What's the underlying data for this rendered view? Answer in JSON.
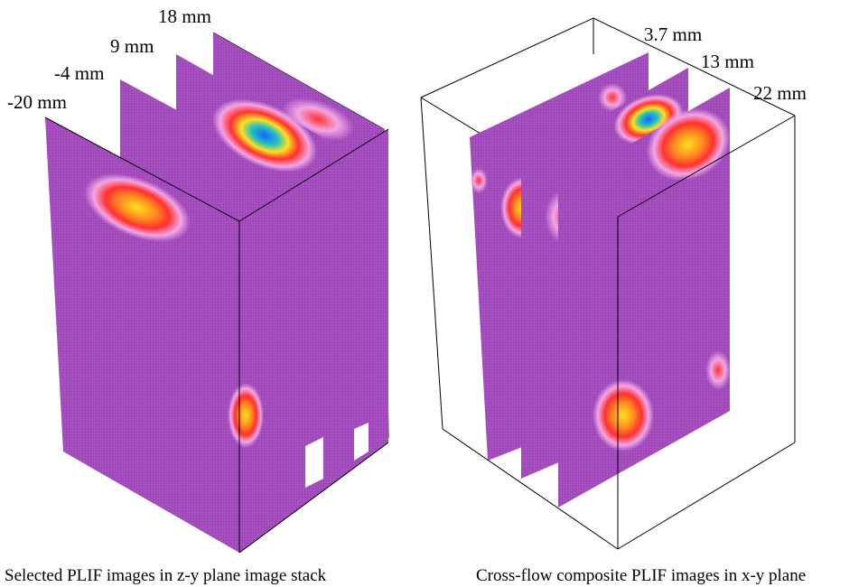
{
  "left_panel": {
    "caption": "Selected PLIF images in z-y plane image stack",
    "slice_labels": [
      "18 mm",
      "9 mm",
      "-4 mm",
      "-20 mm"
    ]
  },
  "right_panel": {
    "caption": "Cross-flow composite PLIF images in x-y plane",
    "slice_labels": [
      "3.7 mm",
      "13 mm",
      "22 mm"
    ]
  },
  "colors": {
    "background_plane": "#a64fc0",
    "colormap": [
      "#a64fc0",
      "#f2a6e6",
      "#ff3030",
      "#ffe020",
      "#20c060",
      "#2080ff"
    ]
  }
}
